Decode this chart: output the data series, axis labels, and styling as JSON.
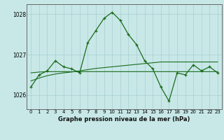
{
  "x": [
    0,
    1,
    2,
    3,
    4,
    5,
    6,
    7,
    8,
    9,
    10,
    11,
    12,
    13,
    14,
    15,
    16,
    17,
    18,
    19,
    20,
    21,
    22,
    23
  ],
  "y_main": [
    1026.2,
    1026.5,
    1026.6,
    1026.85,
    1026.7,
    1026.65,
    1026.55,
    1027.3,
    1027.6,
    1027.9,
    1028.05,
    1027.85,
    1027.5,
    1027.25,
    1026.85,
    1026.65,
    1026.2,
    1025.85,
    1026.55,
    1026.5,
    1026.75,
    1026.6,
    1026.7,
    1026.55
  ],
  "y_flat1": [
    1026.55,
    1026.57,
    1026.58,
    1026.58,
    1026.58,
    1026.58,
    1026.58,
    1026.58,
    1026.58,
    1026.58,
    1026.58,
    1026.58,
    1026.58,
    1026.58,
    1026.58,
    1026.58,
    1026.58,
    1026.58,
    1026.58,
    1026.58,
    1026.58,
    1026.58,
    1026.58,
    1026.58
  ],
  "y_flat2": [
    1026.35,
    1026.42,
    1026.48,
    1026.52,
    1026.55,
    1026.57,
    1026.6,
    1026.63,
    1026.66,
    1026.68,
    1026.7,
    1026.72,
    1026.74,
    1026.76,
    1026.78,
    1026.8,
    1026.82,
    1026.82,
    1026.82,
    1026.82,
    1026.82,
    1026.82,
    1026.82,
    1026.82
  ],
  "main_color": "#1a6b1a",
  "smooth_color": "#1a6b1a",
  "bg_color": "#c8e8e8",
  "grid_color": "#a8cece",
  "title": "Graphe pression niveau de la mer (hPa)",
  "ylim": [
    1025.65,
    1028.25
  ],
  "yticks": [
    1026,
    1027,
    1028
  ],
  "xlim": [
    -0.5,
    23.5
  ],
  "xticks": [
    0,
    1,
    2,
    3,
    4,
    5,
    6,
    7,
    8,
    9,
    10,
    11,
    12,
    13,
    14,
    15,
    16,
    17,
    18,
    19,
    20,
    21,
    22,
    23
  ]
}
